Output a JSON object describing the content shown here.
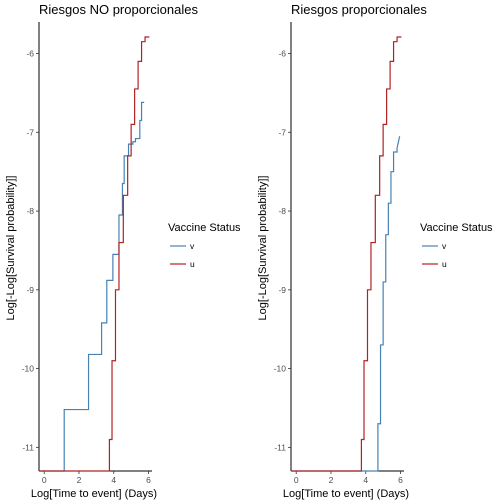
{
  "chart_data": [
    {
      "type": "line",
      "step": true,
      "title": "Riesgos NO proporcionales",
      "xlabel": "Log[Time to event] (Days)",
      "ylabel": "Log[-Log[Survival probability]]",
      "xlim": [
        -0.3,
        6.2
      ],
      "ylim": [
        -11.3,
        -5.6
      ],
      "xticks": [
        0,
        2,
        4,
        6
      ],
      "yticks": [
        -11,
        -10,
        -9,
        -8,
        -7,
        -6
      ],
      "grid": false,
      "legend": {
        "title": "Vaccine Status",
        "position": "right",
        "items": [
          {
            "label": "v",
            "color": "#4682b4"
          },
          {
            "label": "u",
            "color": "#b22222"
          }
        ]
      },
      "series": [
        {
          "name": "v",
          "color": "#4682b4",
          "x": [
            -0.3,
            1.15,
            1.15,
            2.55,
            2.55,
            3.3,
            3.3,
            3.6,
            3.6,
            3.95,
            3.95,
            4.3,
            4.3,
            4.5,
            4.5,
            4.6,
            4.6,
            4.85,
            4.85,
            5.1,
            5.1,
            5.25,
            5.25,
            5.5,
            5.5,
            5.6,
            5.6,
            5.75,
            5.75
          ],
          "y": [
            -11.3,
            -11.3,
            -10.52,
            -10.52,
            -9.82,
            -9.82,
            -9.42,
            -9.42,
            -8.88,
            -8.88,
            -8.55,
            -8.55,
            -8.05,
            -8.05,
            -7.65,
            -7.65,
            -7.3,
            -7.3,
            -7.15,
            -7.15,
            -7.12,
            -7.12,
            -7.08,
            -7.08,
            -6.85,
            -6.85,
            -6.62,
            -6.62,
            -6.62
          ]
        },
        {
          "name": "u",
          "color": "#b22222",
          "x": [
            -0.3,
            3.75,
            3.75,
            3.9,
            3.9,
            4.1,
            4.1,
            4.3,
            4.3,
            4.55,
            4.55,
            4.8,
            4.8,
            5.0,
            5.0,
            5.2,
            5.2,
            5.4,
            5.4,
            5.6,
            5.6,
            5.8,
            5.8,
            6.05
          ],
          "y": [
            -11.3,
            -11.3,
            -10.9,
            -10.9,
            -9.9,
            -9.9,
            -9.0,
            -9.0,
            -8.4,
            -8.4,
            -7.8,
            -7.8,
            -7.3,
            -7.3,
            -6.9,
            -6.9,
            -6.45,
            -6.45,
            -6.1,
            -6.1,
            -5.85,
            -5.85,
            -5.79,
            -5.79
          ]
        }
      ]
    },
    {
      "type": "line",
      "step": true,
      "title": "Riesgos proporcionales",
      "xlabel": "Log[Time to event] (Days)",
      "ylabel": "Log[-Log[Survival probability]]",
      "xlim": [
        -0.3,
        6.2
      ],
      "ylim": [
        -11.3,
        -5.6
      ],
      "xticks": [
        0,
        2,
        4,
        6
      ],
      "yticks": [
        -11,
        -10,
        -9,
        -8,
        -7,
        -6
      ],
      "grid": false,
      "legend": {
        "title": "Vaccine Status",
        "position": "right",
        "items": [
          {
            "label": "v",
            "color": "#4682b4"
          },
          {
            "label": "u",
            "color": "#b22222"
          }
        ]
      },
      "series": [
        {
          "name": "v",
          "color": "#4682b4",
          "x": [
            -0.3,
            4.7,
            4.7,
            4.85,
            4.85,
            5.0,
            5.0,
            5.15,
            5.15,
            5.3,
            5.3,
            5.45,
            5.45,
            5.6,
            5.6,
            5.8,
            5.8,
            5.95
          ],
          "y": [
            -11.3,
            -11.3,
            -10.7,
            -10.7,
            -9.7,
            -9.7,
            -8.9,
            -8.9,
            -8.3,
            -8.3,
            -7.9,
            -7.9,
            -7.5,
            -7.5,
            -7.25,
            -7.25,
            -7.2,
            -7.05
          ]
        },
        {
          "name": "u",
          "color": "#b22222",
          "x": [
            -0.3,
            3.75,
            3.75,
            3.9,
            3.9,
            4.1,
            4.1,
            4.3,
            4.3,
            4.55,
            4.55,
            4.8,
            4.8,
            5.0,
            5.0,
            5.2,
            5.2,
            5.4,
            5.4,
            5.6,
            5.6,
            5.8,
            5.8,
            6.05
          ],
          "y": [
            -11.3,
            -11.3,
            -10.9,
            -10.9,
            -9.9,
            -9.9,
            -9.0,
            -9.0,
            -8.4,
            -8.4,
            -7.8,
            -7.8,
            -7.3,
            -7.3,
            -6.9,
            -6.9,
            -6.45,
            -6.45,
            -6.1,
            -6.1,
            -5.85,
            -5.85,
            -5.79,
            -5.79
          ]
        }
      ]
    }
  ]
}
